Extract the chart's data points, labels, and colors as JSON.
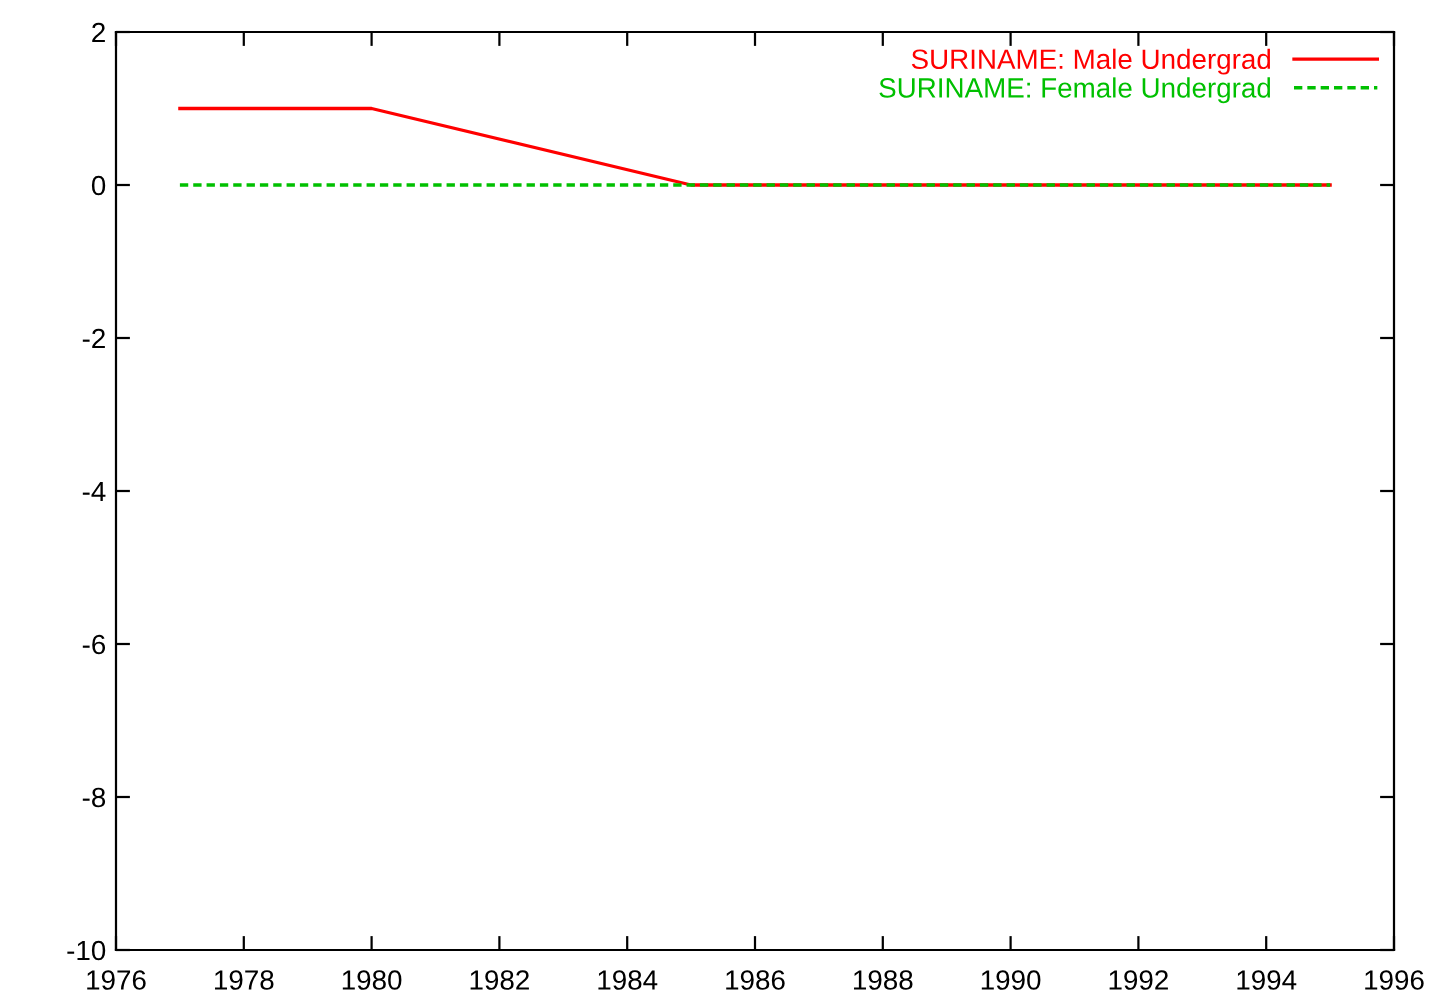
{
  "chart_data": {
    "type": "line",
    "series": [
      {
        "name": "SURINAME: Male Undergrad",
        "color": "#ff0000",
        "x": [
          1977,
          1980,
          1985,
          1995
        ],
        "values": [
          1,
          1,
          0,
          0
        ],
        "line_style": "solid"
      },
      {
        "name": "SURINAME: Female Undergrad",
        "color": "#00c000",
        "x": [
          1977,
          1995
        ],
        "values": [
          0,
          0
        ],
        "line_style": "dashed"
      }
    ],
    "xlim": [
      1976,
      1996
    ],
    "xticks": [
      1976,
      1978,
      1980,
      1982,
      1984,
      1986,
      1988,
      1990,
      1992,
      1994,
      1996
    ],
    "ylim": [
      -10,
      2
    ],
    "yticks": [
      -10,
      -8,
      -6,
      -4,
      -2,
      0,
      2
    ],
    "grid": false,
    "legend": "top right",
    "marker": "none"
  }
}
